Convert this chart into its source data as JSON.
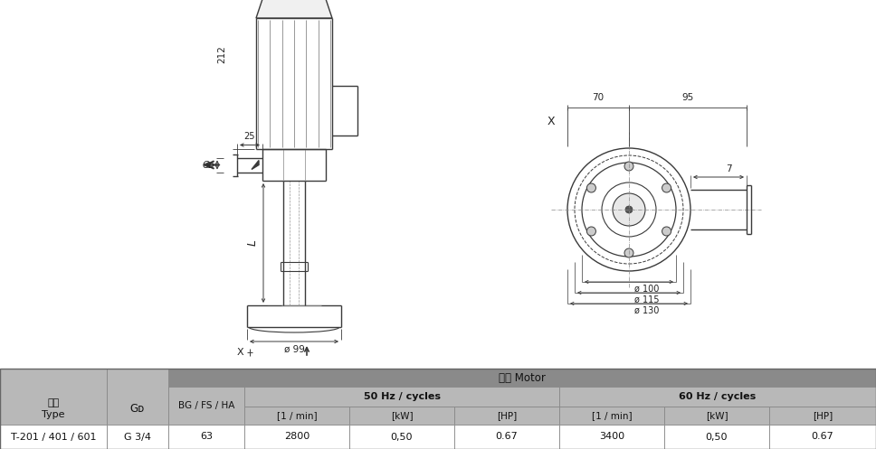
{
  "bg_color": "#ffffff",
  "lc": "#3a3a3a",
  "dc": "#3a3a3a",
  "table_header_bg": "#8a8a8a",
  "table_sub_bg": "#b8b8b8",
  "table_row_bg": "#ffffff",
  "table_text": "#111111",
  "table_data": {
    "type_label": "型號\nType",
    "gd_label": "Gᴅ",
    "bgfsha_label": "BG / FS / HA",
    "motor_label": "馬達 Motor",
    "hz50_label": "50 Hz / cycles",
    "hz60_label": "60 Hz / cycles",
    "col_1min": "[1 / min]",
    "col_kw": "[kW]",
    "col_hp": "[HP]",
    "row_type": "T-201 / 401 / 601",
    "row_gd": "G 3/4",
    "row_bg": "63",
    "row_50_1min": "2800",
    "row_50_kw": "0,50",
    "row_50_hp": "0.67",
    "row_60_1min": "3400",
    "row_60_kw": "0,50",
    "row_60_hp": "0.67"
  }
}
